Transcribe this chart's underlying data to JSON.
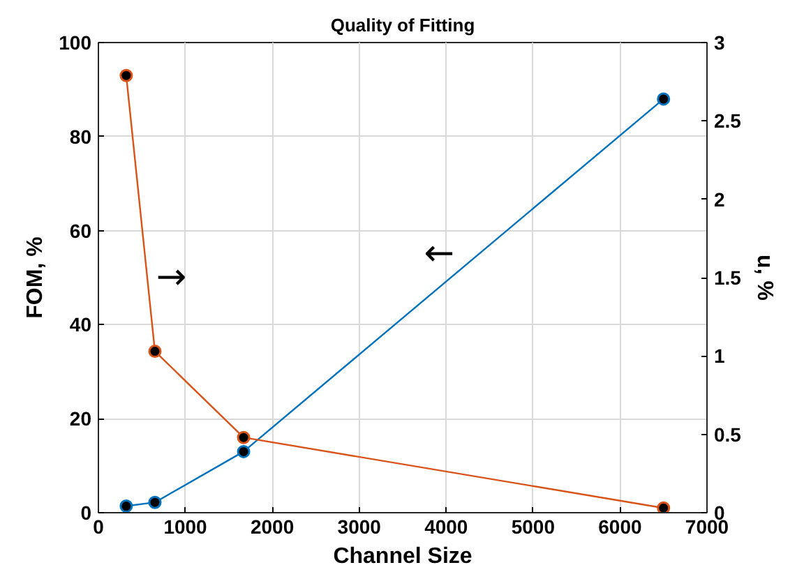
{
  "chart_data": {
    "type": "line",
    "title": "Quality of Fitting",
    "xlabel": "Channel Size",
    "ylabel": "FOM, %",
    "y2label": "u, %",
    "x": [
      320,
      650,
      1670,
      6500
    ],
    "series": [
      {
        "color": "#0072bd",
        "values": [
          1.4,
          2.2,
          13,
          88
        ]
      },
      {
        "color": "#d95319",
        "values": [
          2.79,
          1.03,
          0.48,
          0.03
        ],
        "axis": "y2"
      }
    ],
    "xlim": [
      0,
      7000
    ],
    "xticks": [
      0,
      1000,
      2000,
      3000,
      4000,
      5000,
      6000,
      7000
    ],
    "ylim": [
      0,
      100
    ],
    "yticks": [
      0,
      20,
      40,
      60,
      80,
      100
    ],
    "y2lim": [
      0,
      3
    ],
    "y2ticks": [
      0,
      0.5,
      1,
      1.5,
      2,
      2.5,
      3
    ],
    "annotations": [
      "→",
      "←"
    ],
    "grid": true,
    "marker": "circle"
  }
}
